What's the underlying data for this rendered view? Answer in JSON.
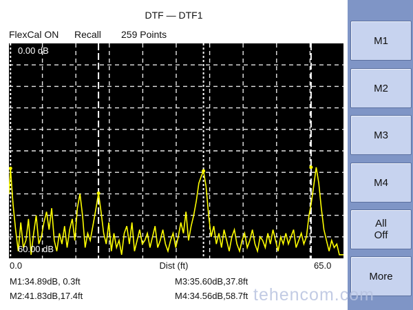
{
  "title": "DTF — DTF1",
  "header": {
    "flexcal": "FlexCal ON",
    "recall": "Recall",
    "points": "259 Points"
  },
  "chart_data": {
    "type": "line",
    "top_label": "0.00 dB",
    "bottom_label": "60.00 dB",
    "x_start_label": "0.0",
    "x_end_label": "65.0",
    "xlabel": "Dist (ft)",
    "xlim": [
      0,
      65
    ],
    "ylim_db": [
      0,
      60
    ],
    "grid": true,
    "trace_color": "#ffff00",
    "markers": [
      {
        "name": "M1",
        "distance_ft": 0.3,
        "value_db": 34.89
      },
      {
        "name": "M2",
        "distance_ft": 17.4,
        "value_db": 41.83
      },
      {
        "name": "M3",
        "distance_ft": 37.8,
        "value_db": 35.6
      },
      {
        "name": "M4",
        "distance_ft": 58.7,
        "value_db": 34.56
      }
    ],
    "trace": {
      "x": [
        0,
        0.3,
        0.8,
        1.3,
        1.8,
        2.3,
        2.8,
        3.3,
        3.8,
        4.3,
        4.8,
        5.3,
        5.8,
        6.3,
        6.8,
        7.3,
        7.8,
        8.3,
        8.8,
        9.3,
        9.8,
        10.3,
        10.8,
        11.3,
        11.8,
        12.3,
        12.8,
        13.3,
        13.8,
        14.3,
        14.8,
        15.3,
        15.8,
        16.3,
        16.8,
        17.4,
        17.9,
        18.4,
        18.9,
        19.4,
        19.9,
        20.4,
        20.9,
        21.4,
        21.9,
        22.4,
        22.9,
        23.4,
        23.9,
        24.4,
        24.9,
        25.4,
        25.9,
        26.4,
        26.9,
        27.4,
        27.9,
        28.4,
        28.9,
        29.4,
        29.9,
        30.4,
        30.9,
        31.4,
        31.9,
        32.4,
        32.9,
        33.4,
        33.9,
        34.4,
        34.9,
        35.4,
        35.9,
        36.4,
        36.9,
        37.4,
        37.8,
        38.3,
        38.8,
        39.3,
        39.8,
        40.3,
        40.8,
        41.3,
        41.8,
        42.3,
        42.8,
        43.3,
        43.8,
        44.3,
        44.8,
        45.3,
        45.8,
        46.3,
        46.8,
        47.3,
        47.8,
        48.3,
        48.8,
        49.3,
        49.8,
        50.3,
        50.8,
        51.3,
        51.8,
        52.3,
        52.8,
        53.3,
        53.8,
        54.3,
        54.8,
        55.3,
        55.8,
        56.3,
        56.8,
        57.3,
        57.8,
        58.3,
        58.7,
        59.2,
        59.7,
        60.2,
        60.7,
        61.2,
        61.7,
        62.2,
        62.7,
        63.2,
        63.7,
        64.2,
        65
      ],
      "y": [
        42,
        34.9,
        45,
        52,
        58,
        50,
        57,
        55,
        49,
        59,
        53,
        48,
        56,
        54,
        50,
        47,
        52,
        46,
        55,
        58,
        53,
        56,
        51,
        57,
        52,
        49,
        55,
        46,
        42,
        48,
        57,
        53,
        55,
        51,
        47,
        41.8,
        47,
        53,
        56,
        50,
        58,
        53,
        57,
        55,
        59,
        53,
        51,
        56,
        50,
        58,
        55,
        52,
        56,
        55,
        53,
        57,
        54,
        51,
        57,
        55,
        52,
        56,
        58,
        55,
        53,
        57,
        54,
        50,
        53,
        47,
        55,
        51,
        48,
        44,
        39,
        37,
        35.6,
        40,
        48,
        54,
        51,
        56,
        53,
        57,
        52,
        55,
        58,
        54,
        52,
        56,
        58,
        55,
        53,
        57,
        55,
        52,
        56,
        58,
        54,
        55,
        57,
        53,
        56,
        52,
        55,
        58,
        54,
        56,
        53,
        56,
        54,
        52,
        57,
        55,
        53,
        56,
        54,
        48,
        45,
        40,
        34.6,
        39,
        46,
        52,
        55,
        58,
        55,
        57,
        56,
        59,
        59
      ]
    }
  },
  "marker_readouts": {
    "m1": "M1:34.89dB, 0.3ft",
    "m2": "M2:41.83dB,17.4ft",
    "m3": "M3:35.60dB,37.8ft",
    "m4": "M4:34.56dB,58.7ft"
  },
  "softkeys": {
    "m1": "M1",
    "m2": "M2",
    "m3": "M3",
    "m4": "M4",
    "all_off": "All\nOff",
    "more": "More"
  },
  "watermark": "tehencom.com"
}
